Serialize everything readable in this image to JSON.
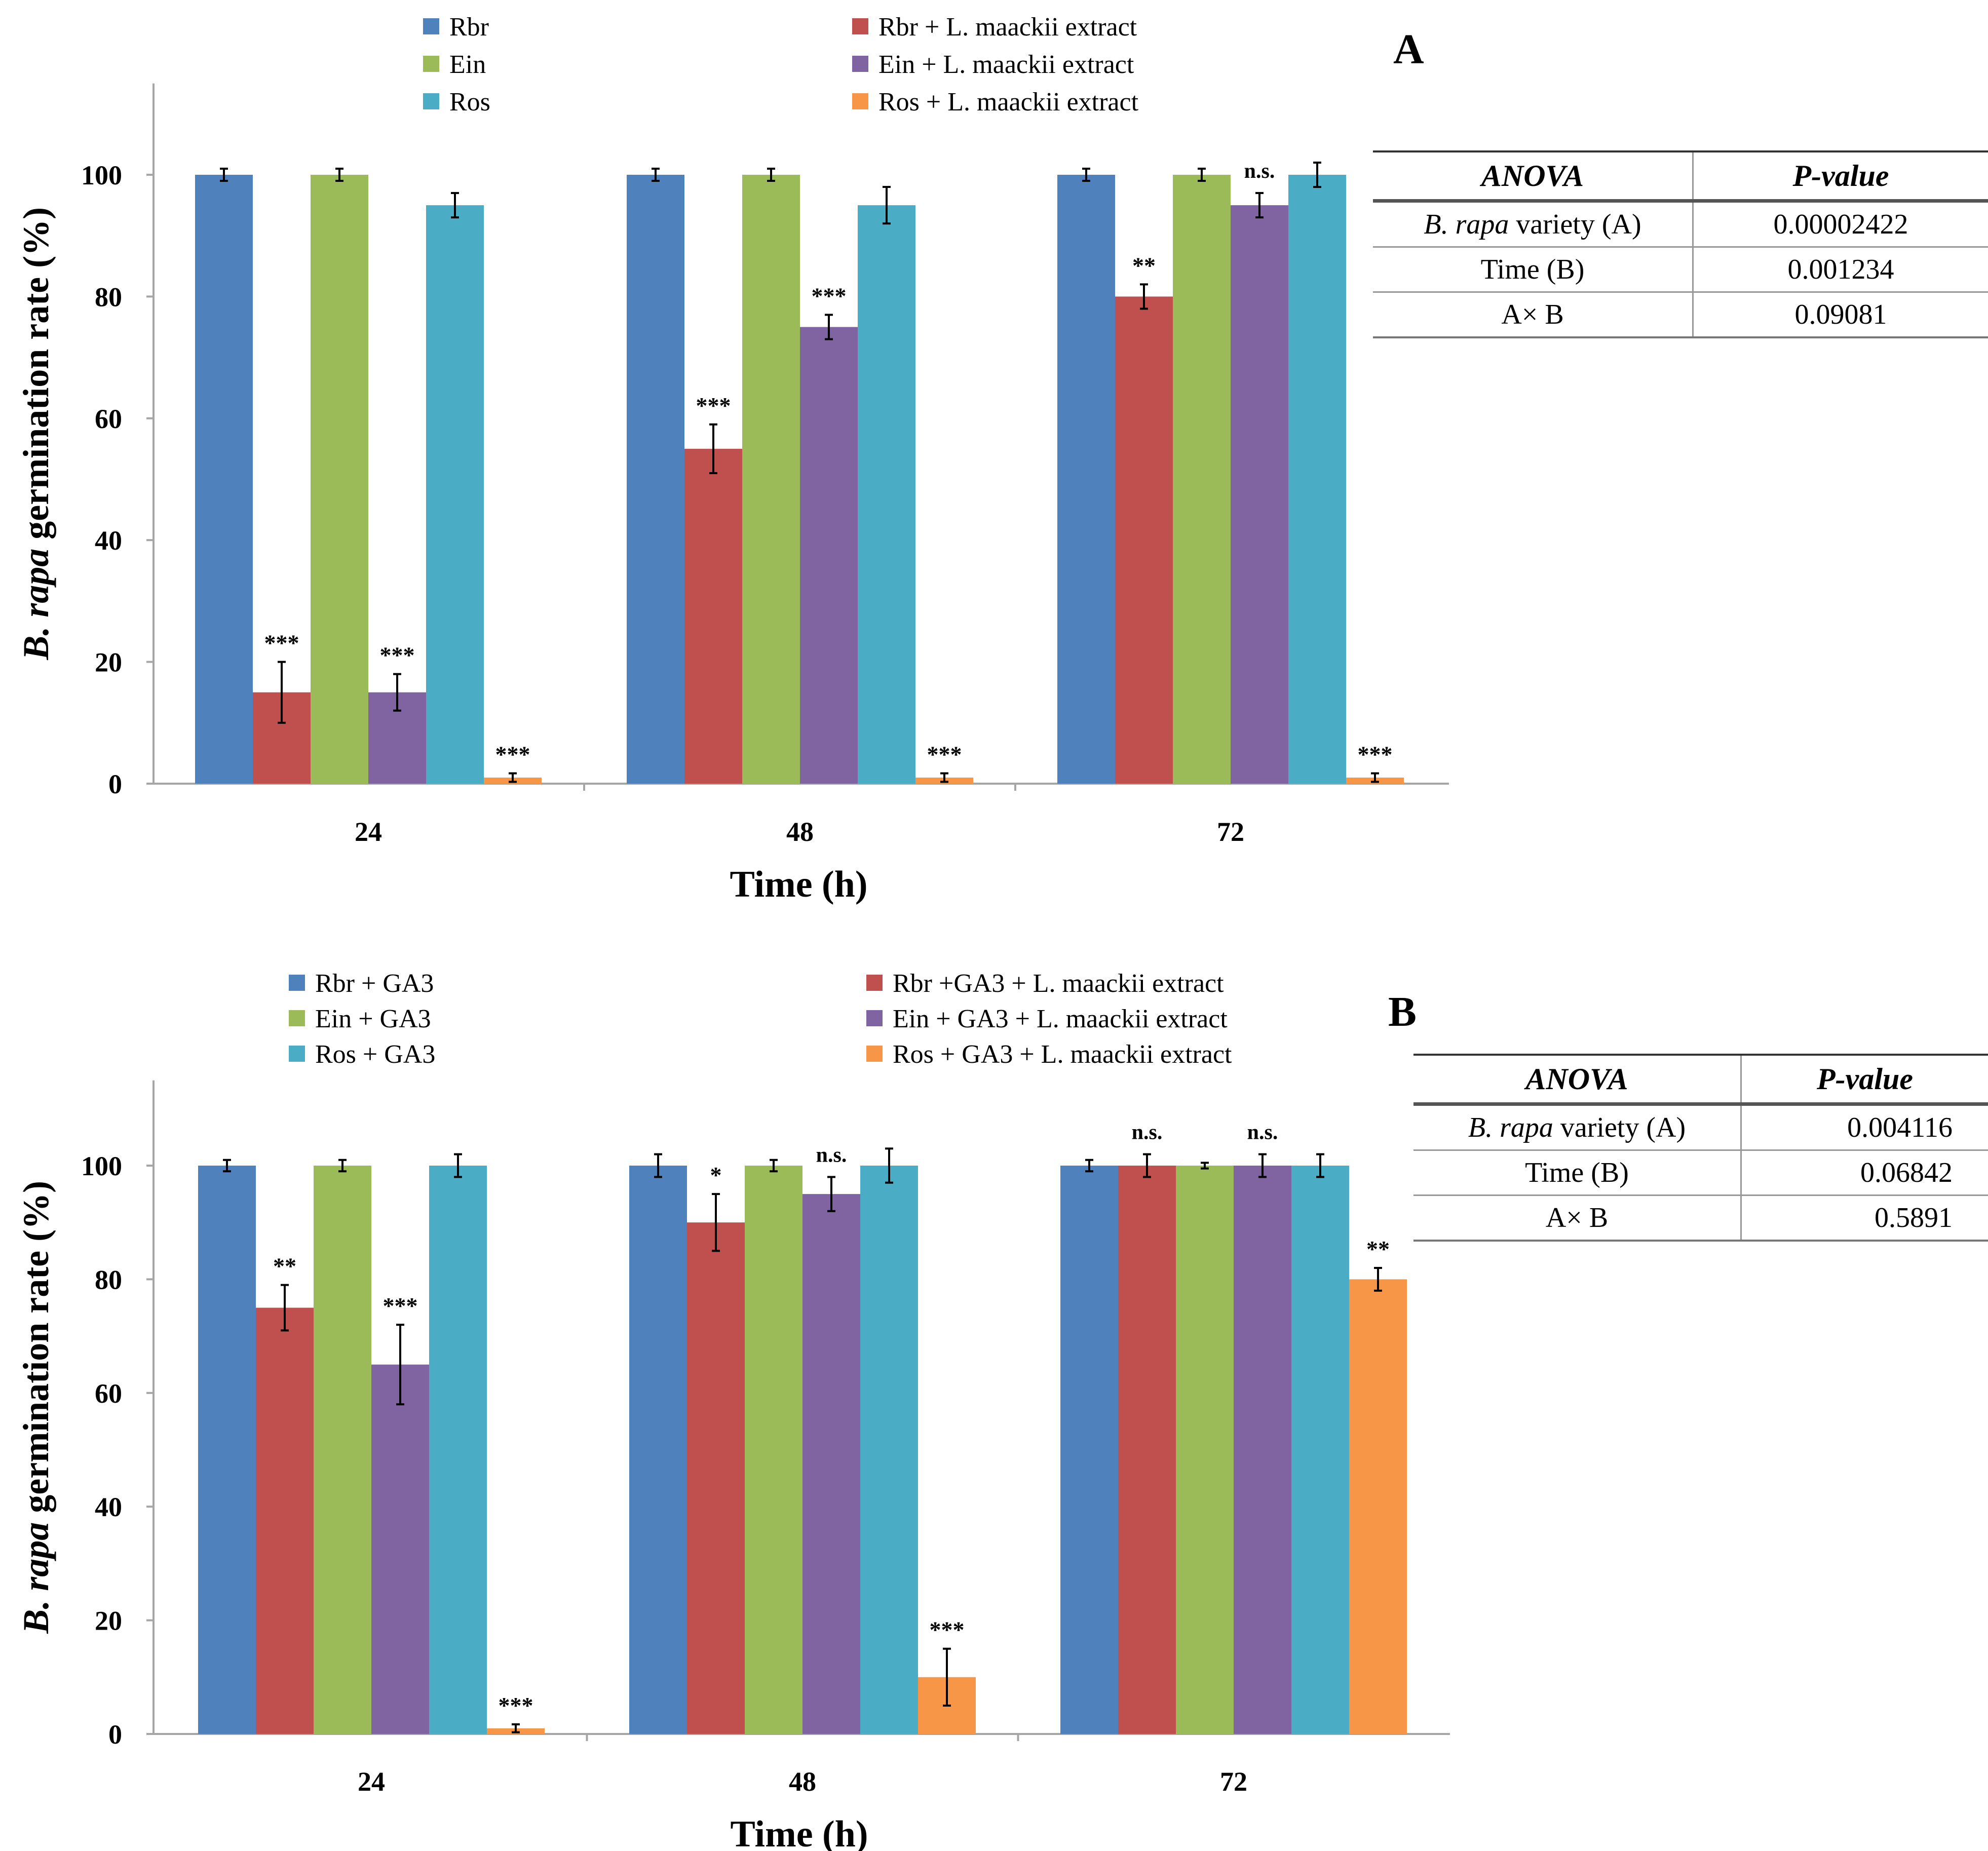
{
  "chart_data": [
    {
      "panel": "A",
      "type": "bar",
      "categories": [
        "24",
        "48",
        "72"
      ],
      "xlabel": "Time (h)",
      "ylabel_italic": "B. rapa",
      "ylabel_rest": " germination rate (%)",
      "ylim": [
        0,
        115
      ],
      "yticks": [
        0,
        20,
        40,
        60,
        80,
        100
      ],
      "series": [
        {
          "name": "Rbr",
          "color": "#4f81bd",
          "values": [
            100,
            100,
            100
          ],
          "errors": [
            1,
            1,
            1
          ],
          "sig": [
            "",
            "",
            ""
          ]
        },
        {
          "name": "Rbr + L. maackii extract",
          "color": "#c0504d",
          "values": [
            15,
            55,
            80
          ],
          "errors": [
            5,
            4,
            2
          ],
          "sig": [
            "***",
            "***",
            "**"
          ]
        },
        {
          "name": "Ein",
          "color": "#9bbb59",
          "values": [
            100,
            100,
            100
          ],
          "errors": [
            1,
            1,
            1
          ],
          "sig": [
            "",
            "",
            ""
          ]
        },
        {
          "name": "Ein + L. maackii extract",
          "color": "#8064a2",
          "values": [
            15,
            75,
            95
          ],
          "errors": [
            3,
            2,
            2
          ],
          "sig": [
            "***",
            "***",
            "n.s."
          ]
        },
        {
          "name": "Ros",
          "color": "#4bacc6",
          "values": [
            95,
            95,
            100
          ],
          "errors": [
            2,
            3,
            2
          ],
          "sig": [
            "",
            "",
            ""
          ]
        },
        {
          "name": "Ros + L. maackii extract",
          "color": "#f79646",
          "values": [
            1,
            1,
            1
          ],
          "errors": [
            0.7,
            0.7,
            0.7
          ],
          "sig": [
            "***",
            "***",
            "***"
          ]
        }
      ],
      "legend": {
        "left": [
          "Rbr",
          "Ein",
          "Ros"
        ],
        "right": [
          "Rbr + L. maackii extract",
          "Ein + L. maackii extract",
          "Ros + L. maackii extract"
        ]
      },
      "table": {
        "header": [
          "ANOVA",
          "P-value"
        ],
        "rows": [
          {
            "italic": "B. rapa",
            "label": " variety (A)",
            "value": "0.00002422"
          },
          {
            "italic": "",
            "label": "Time (B)",
            "value": "0.001234"
          },
          {
            "italic": "",
            "label": "A× B",
            "value": "0.09081"
          }
        ]
      }
    },
    {
      "panel": "B",
      "type": "bar",
      "categories": [
        "24",
        "48",
        "72"
      ],
      "xlabel": "Time (h)",
      "ylabel_italic": "B. rapa",
      "ylabel_rest": " germination rate (%)",
      "ylim": [
        0,
        115
      ],
      "yticks": [
        0,
        20,
        40,
        60,
        80,
        100
      ],
      "series": [
        {
          "name": "Rbr + GA3",
          "color": "#4f81bd",
          "values": [
            100,
            100,
            100
          ],
          "errors": [
            1,
            2,
            1
          ],
          "sig": [
            "",
            "",
            ""
          ]
        },
        {
          "name": "Rbr +GA3 + L. maackii extract",
          "color": "#c0504d",
          "values": [
            75,
            90,
            100
          ],
          "errors": [
            4,
            5,
            2
          ],
          "sig": [
            "**",
            "*",
            "n.s."
          ]
        },
        {
          "name": "Ein + GA3",
          "color": "#9bbb59",
          "values": [
            100,
            100,
            100
          ],
          "errors": [
            1,
            1,
            0.5
          ],
          "sig": [
            "",
            "",
            ""
          ]
        },
        {
          "name": "Ein + GA3 + L. maackii extract",
          "color": "#8064a2",
          "values": [
            65,
            95,
            100
          ],
          "errors": [
            7,
            3,
            2
          ],
          "sig": [
            "***",
            "n.s.",
            "n.s."
          ]
        },
        {
          "name": "Ros + GA3",
          "color": "#4bacc6",
          "values": [
            100,
            100,
            100
          ],
          "errors": [
            2,
            3,
            2
          ],
          "sig": [
            "",
            "",
            ""
          ]
        },
        {
          "name": "Ros + GA3 + L. maackii extract",
          "color": "#f79646",
          "values": [
            1,
            10,
            80
          ],
          "errors": [
            0.7,
            5,
            2
          ],
          "sig": [
            "***",
            "***",
            "**"
          ]
        }
      ],
      "legend": {
        "left": [
          "Rbr + GA3",
          "Ein + GA3",
          "Ros + GA3"
        ],
        "right": [
          "Rbr +GA3 + L. maackii extract",
          "Ein + GA3 + L. maackii extract",
          "Ros + GA3 + L. maackii extract"
        ]
      },
      "table": {
        "header": [
          "ANOVA",
          "P-value"
        ],
        "rows": [
          {
            "italic": "B. rapa",
            "label": " variety (A)",
            "value": "0.004116"
          },
          {
            "italic": "",
            "label": "Time (B)",
            "value": "0.06842"
          },
          {
            "italic": "",
            "label": "A× B",
            "value": "0.5891"
          }
        ]
      }
    }
  ]
}
